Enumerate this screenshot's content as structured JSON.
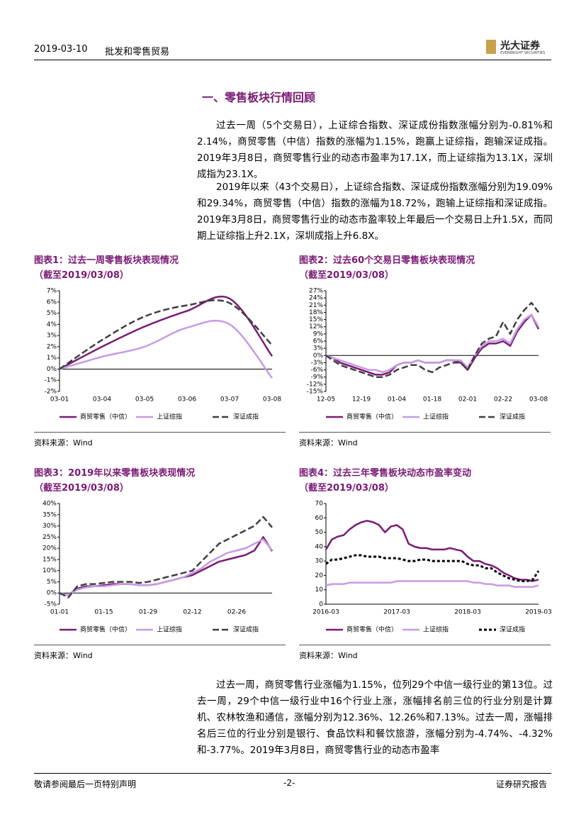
{
  "header": {
    "date": "2019-03-10",
    "industry": "批发和零售贸易",
    "logo_cn": "光大证券",
    "logo_en": "EVERBRIGHT SECURITIES"
  },
  "section_title": "一、零售板块行情回顾",
  "paragraphs": [
    "过去一周（5个交易日），上证综合指数、深证成份指数涨幅分别为-0.81%和2.14%，商贸零售（中信）指数的涨幅为1.15%，跑赢上证综指，跑输深证成指。2019年3月8日，商贸零售行业的动态市盈率为17.1X，而上证综指为13.1X，深圳成指为23.1X。",
    "2019年以来（43个交易日），上证综合指数、深证成份指数涨幅分别为19.09%和29.34%，商贸零售（中信）指数的涨幅为18.72%，跑输上证综指和深证成指。2019年3月8日，商贸零售行业的动态市盈率较上年最后一个交易日上升1.5X，而同期上证综指上升2.1X，深圳成指上升6.8X。",
    "过去一周，商贸零售行业涨幅为1.15%，位列29个中信一级行业的第13位。过去一周，29个中信一级行业中16个行业上涨，涨幅排名前三位的行业分别是计算机、农林牧渔和通信，涨幅分别为12.36%、12.26%和7.13%。过去一周，涨幅排名后三位的行业分别是银行、食品饮料和餐饮旅游，涨幅分别为-4.74%、-4.32%和-3.77%。2019年3月8日，商贸零售行业的动态市盈率"
  ],
  "footer": {
    "left": "敬请参阅最后一页特别声明",
    "center": "-2-",
    "right": "证券研究报告"
  },
  "chart_data": [
    {
      "type": "line",
      "smooth": true,
      "title": "图表1：过去一周零售板块表现情况",
      "subtitle": "（截至2019/03/08）",
      "source": "资料来源：Wind",
      "categories": [
        "03-01",
        "03-04",
        "03-05",
        "03-06",
        "03-07",
        "03-08"
      ],
      "series": [
        {
          "name": "商贸零售（中信）",
          "color": "#7a1a74",
          "style": "solid",
          "values": [
            0,
            2.0,
            3.8,
            5.2,
            6.3,
            1.15
          ]
        },
        {
          "name": "上证综指",
          "color": "#c59be6",
          "style": "solid",
          "values": [
            0,
            1.1,
            2.0,
            3.7,
            4.0,
            -0.81
          ]
        },
        {
          "name": "深证成指",
          "color": "#3f3f3f",
          "style": "dashed",
          "values": [
            0,
            2.6,
            4.7,
            5.7,
            5.9,
            2.14
          ]
        }
      ],
      "ylim": [
        -2,
        7
      ],
      "yticks": [
        {
          "value": -2,
          "label": "-2%"
        },
        {
          "value": -1,
          "label": "-1%"
        },
        {
          "value": 0,
          "label": "0%"
        },
        {
          "value": 1,
          "label": "1%"
        },
        {
          "value": 2,
          "label": "2%"
        },
        {
          "value": 3,
          "label": "3%"
        },
        {
          "value": 4,
          "label": "4%"
        },
        {
          "value": 5,
          "label": "5%"
        },
        {
          "value": 6,
          "label": "6%"
        },
        {
          "value": 7,
          "label": "7%"
        }
      ]
    },
    {
      "type": "line",
      "smooth": false,
      "title": "图表2：过去60个交易日零售板块表现情况",
      "subtitle": "（截至2019/03/08）",
      "source": "资料来源：Wind",
      "categories": [
        "12-05",
        null,
        null,
        null,
        null,
        "12-19",
        null,
        null,
        null,
        null,
        "01-04",
        null,
        null,
        null,
        null,
        "01-18",
        null,
        null,
        null,
        null,
        "02-01",
        null,
        null,
        null,
        null,
        "02-22",
        null,
        null,
        null,
        null,
        "03-08"
      ],
      "series": [
        {
          "name": "商贸零售（中信）",
          "color": "#7a1a74",
          "style": "solid",
          "values": [
            0,
            -1,
            -3,
            -4,
            -5,
            -6,
            -7,
            -8,
            -8,
            -7,
            -4,
            -3,
            -3,
            -2,
            -3,
            -3,
            -3,
            -2,
            -2,
            -3,
            -6,
            -1,
            3,
            5,
            5,
            6,
            4,
            10,
            14,
            17,
            11
          ]
        },
        {
          "name": "上证综指",
          "color": "#c59be6",
          "style": "solid",
          "values": [
            0,
            -1,
            -2,
            -3,
            -4,
            -5,
            -6,
            -6,
            -7,
            -6,
            -4,
            -3,
            -3,
            -2,
            -3,
            -3,
            -3,
            -2,
            -2,
            -2,
            -5,
            0,
            4,
            6,
            6,
            7,
            5,
            11,
            15,
            17,
            12
          ]
        },
        {
          "name": "深证成指",
          "color": "#3f3f3f",
          "style": "dashed",
          "values": [
            0,
            -2,
            -4,
            -5,
            -6,
            -7,
            -8,
            -9,
            -9,
            -8,
            -6,
            -5,
            -4,
            -4,
            -6,
            -7,
            -5,
            -4,
            -3,
            -3,
            -6,
            0,
            5,
            7,
            8,
            14,
            9,
            15,
            19,
            22,
            18
          ]
        }
      ],
      "ylim": [
        -15,
        27
      ],
      "yticks": [
        {
          "value": -15,
          "label": "-15%"
        },
        {
          "value": -12,
          "label": "-12%"
        },
        {
          "value": -9,
          "label": "-9%"
        },
        {
          "value": -6,
          "label": "-6%"
        },
        {
          "value": -3,
          "label": "-3%"
        },
        {
          "value": 0,
          "label": "0%"
        },
        {
          "value": 3,
          "label": "3%"
        },
        {
          "value": 6,
          "label": "6%"
        },
        {
          "value": 9,
          "label": "9%"
        },
        {
          "value": 12,
          "label": "12%"
        },
        {
          "value": 15,
          "label": "15%"
        },
        {
          "value": 18,
          "label": "18%"
        },
        {
          "value": 21,
          "label": "21%"
        },
        {
          "value": 24,
          "label": "24%"
        },
        {
          "value": 27,
          "label": "27%"
        }
      ]
    },
    {
      "type": "line",
      "smooth": false,
      "title": "图表3：2019年以来零售板块表现情况",
      "subtitle": "（截至2019/03/08）",
      "source": "资料来源：Wind",
      "categories": [
        "01-01",
        null,
        null,
        null,
        null,
        "01-15",
        null,
        null,
        null,
        null,
        "01-29",
        null,
        null,
        null,
        null,
        "02-12",
        null,
        null,
        null,
        null,
        "02-26",
        null,
        null,
        null,
        null
      ],
      "series": [
        {
          "name": "商贸零售（中信）",
          "color": "#7a1a74",
          "style": "solid",
          "values": [
            0,
            -1,
            2,
            3,
            3,
            3.5,
            4,
            4,
            4,
            3.5,
            3.5,
            4,
            5,
            6,
            7,
            8,
            10,
            12,
            14,
            15,
            16,
            17,
            19,
            25,
            18.72
          ]
        },
        {
          "name": "上证综指",
          "color": "#c59be6",
          "style": "solid",
          "values": [
            0,
            -1,
            1.5,
            2.5,
            3,
            3,
            3.5,
            4,
            4,
            3.5,
            3.5,
            4,
            5,
            6,
            7,
            9,
            11,
            14,
            16,
            18,
            19,
            20,
            22,
            24,
            19.09
          ]
        },
        {
          "name": "深证成指",
          "color": "#3f3f3f",
          "style": "dashed",
          "values": [
            0,
            -2,
            3,
            4,
            4,
            4.5,
            5,
            5,
            5,
            4.5,
            5,
            6,
            7,
            8,
            9,
            10,
            14,
            18,
            22,
            24,
            26,
            28,
            30,
            34,
            29.34
          ]
        }
      ],
      "ylim": [
        -5,
        40
      ],
      "yticks": [
        {
          "value": -5,
          "label": "-5%"
        },
        {
          "value": 0,
          "label": "0%"
        },
        {
          "value": 5,
          "label": "5%"
        },
        {
          "value": 10,
          "label": "10%"
        },
        {
          "value": 15,
          "label": "15%"
        },
        {
          "value": 20,
          "label": "20%"
        },
        {
          "value": 25,
          "label": "25%"
        },
        {
          "value": 30,
          "label": "30%"
        },
        {
          "value": 35,
          "label": "35%"
        },
        {
          "value": 40,
          "label": "40%"
        }
      ]
    },
    {
      "type": "line",
      "smooth": false,
      "title": "图表4：过去三年零售板块动态市盈率变动",
      "subtitle": "（截至2019/03/08）",
      "source": "资料来源：Wind",
      "categories": [
        "2016-03",
        null,
        null,
        null,
        null,
        null,
        null,
        null,
        null,
        null,
        null,
        null,
        "2017-03",
        null,
        null,
        null,
        null,
        null,
        null,
        null,
        null,
        null,
        null,
        null,
        "2018-03",
        null,
        null,
        null,
        null,
        null,
        null,
        null,
        null,
        null,
        null,
        null,
        "2019-03"
      ],
      "series": [
        {
          "name": "商贸零售（中信）",
          "color": "#7a1a74",
          "style": "solid",
          "values": [
            38,
            45,
            47,
            48,
            52,
            55,
            57,
            58,
            57,
            55,
            50,
            54,
            55,
            52,
            42,
            40,
            39,
            39,
            38,
            38,
            38,
            39,
            38,
            37,
            33,
            30,
            30,
            28,
            27,
            25,
            22,
            20,
            18,
            17,
            17,
            16,
            17.1
          ]
        },
        {
          "name": "上证综指",
          "color": "#c59be6",
          "style": "solid",
          "values": [
            13,
            14,
            14,
            14,
            15,
            15,
            15,
            15,
            15,
            15,
            15,
            15,
            16,
            16,
            16,
            16,
            16,
            16,
            16,
            16,
            16,
            16,
            16,
            16,
            16,
            15,
            15,
            14,
            14,
            13,
            13,
            13,
            12,
            12,
            12,
            12,
            13.1
          ]
        },
        {
          "name": "深证成指",
          "color": "#000000",
          "style": "dotted",
          "values": [
            28,
            31,
            31,
            32,
            33,
            34,
            34,
            33,
            33,
            33,
            32,
            32,
            32,
            31,
            30,
            30,
            31,
            31,
            30,
            30,
            30,
            30,
            30,
            30,
            28,
            27,
            27,
            25,
            25,
            22,
            20,
            18,
            17,
            16,
            16,
            17,
            23.1
          ]
        }
      ],
      "ylim": [
        0,
        70
      ],
      "yticks": [
        0,
        10,
        20,
        30,
        40,
        50,
        60,
        70
      ]
    }
  ]
}
